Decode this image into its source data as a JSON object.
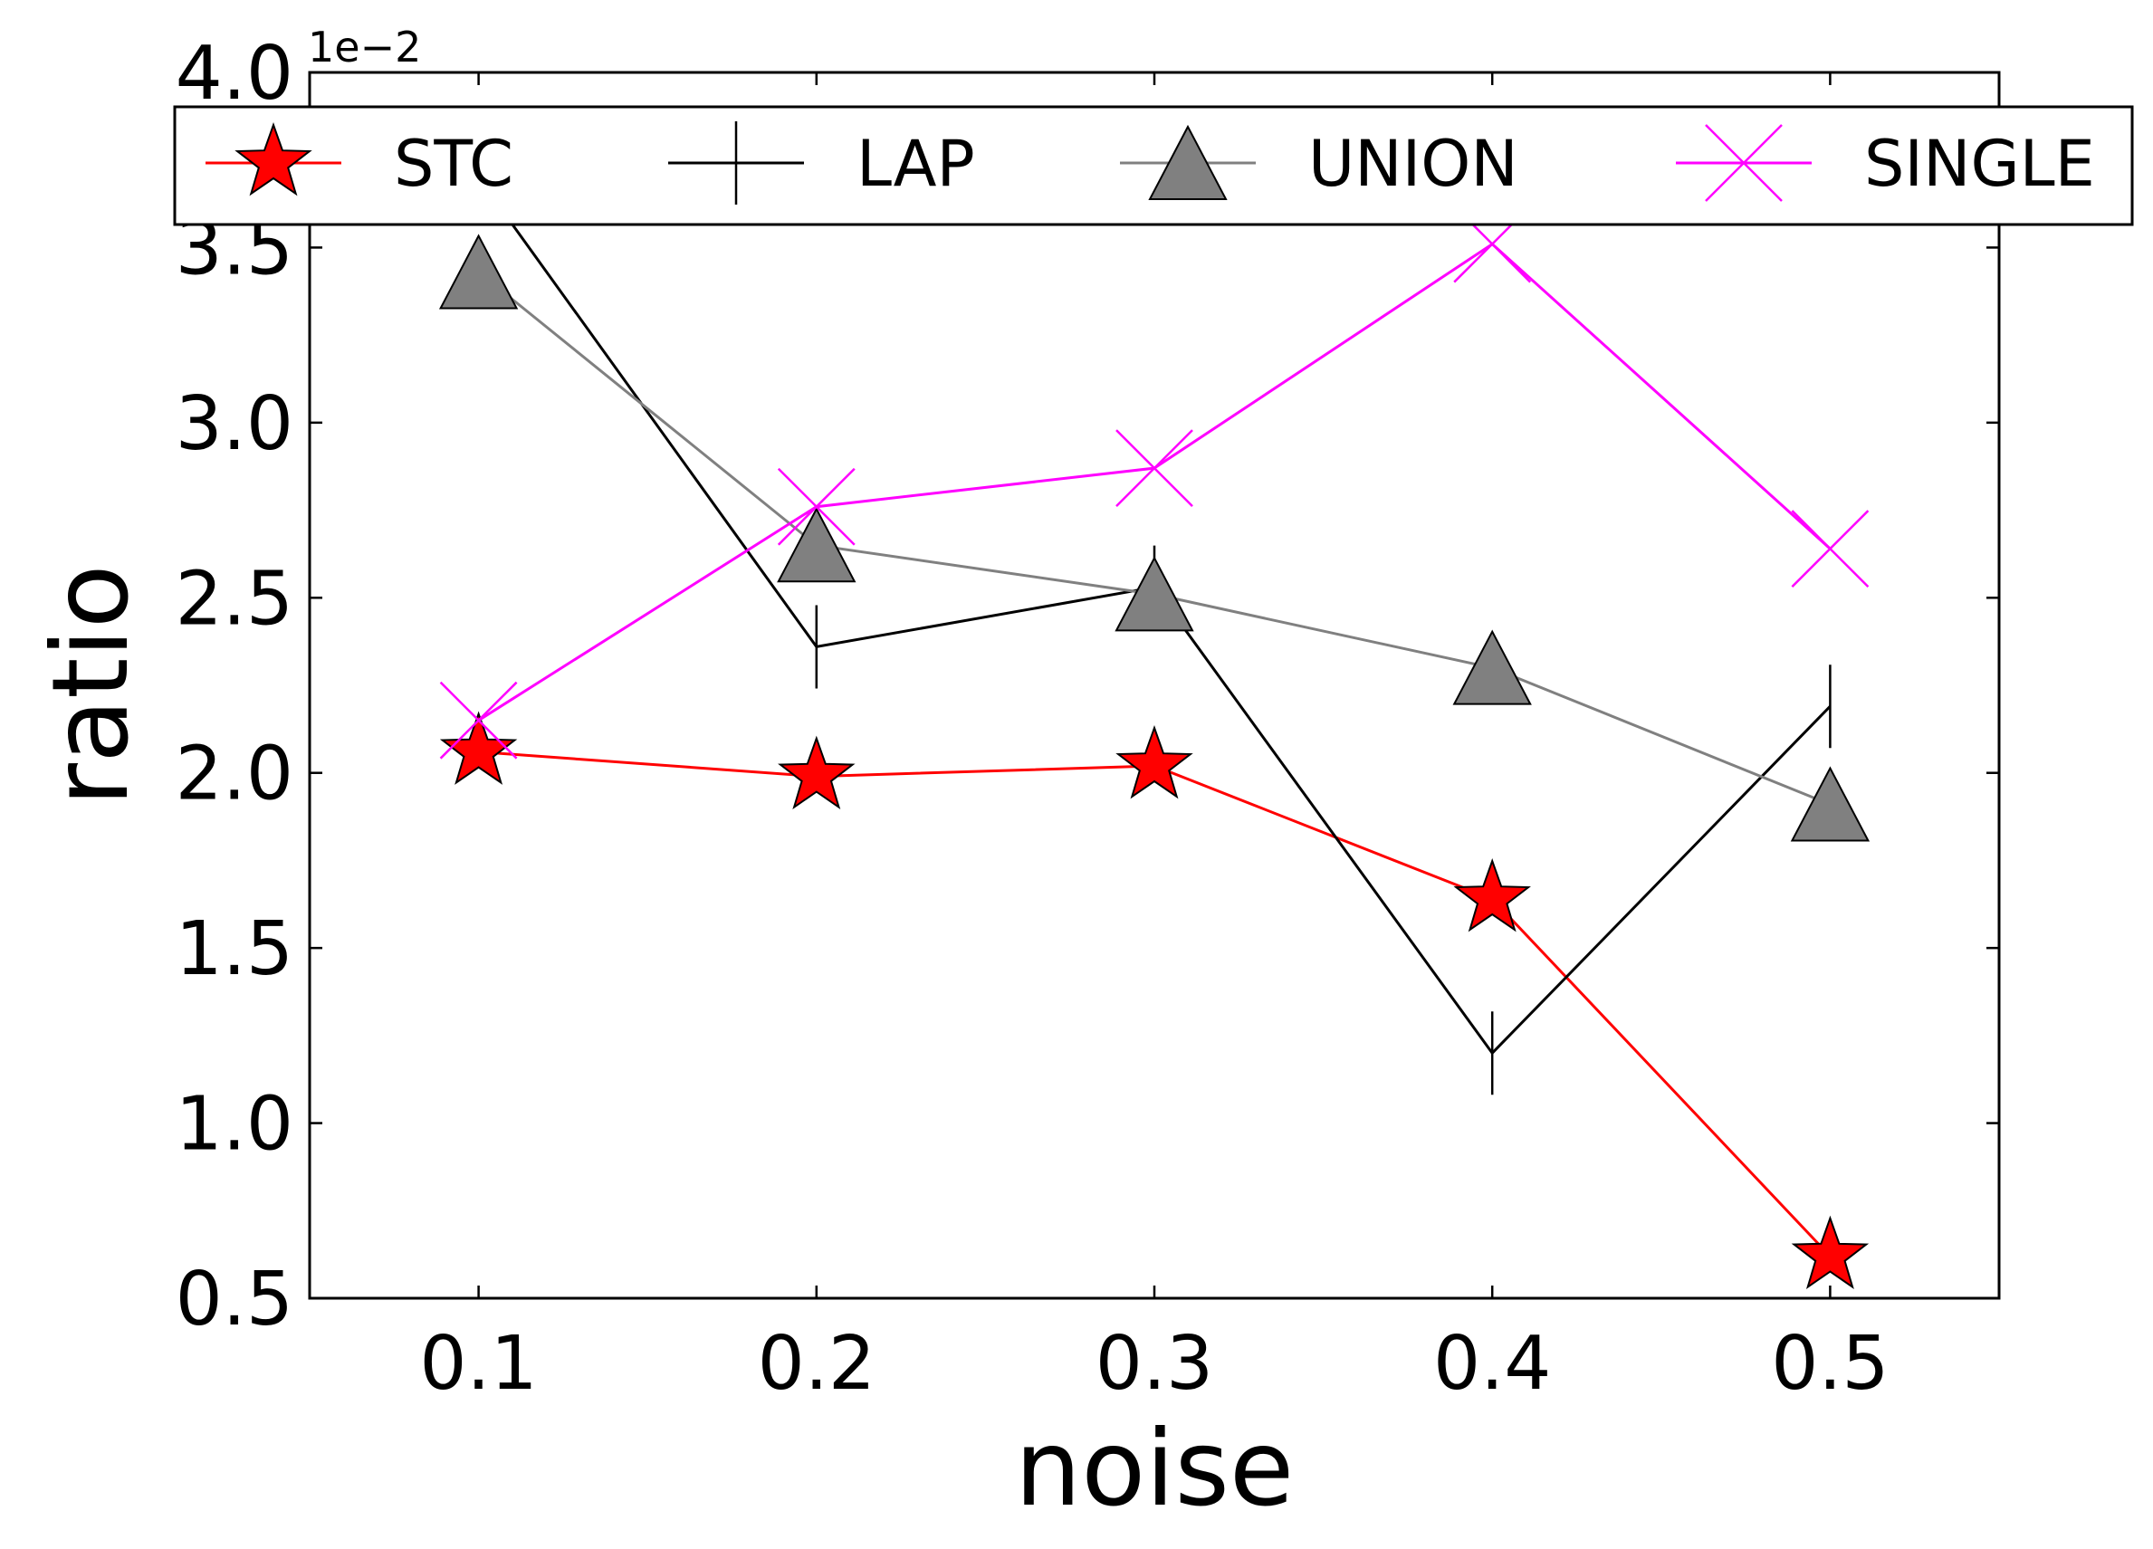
{
  "chart_data": {
    "type": "line",
    "xlabel": "noise",
    "ylabel": "ratio",
    "y_offset_label": "1e−2",
    "x": [
      0.1,
      0.2,
      0.3,
      0.4,
      0.5
    ],
    "x_tick_labels": [
      "0.1",
      "0.2",
      "0.3",
      "0.4",
      "0.5"
    ],
    "y_tick_labels": [
      "0.5",
      "1.0",
      "1.5",
      "2.0",
      "2.5",
      "3.0",
      "3.5",
      "4.0"
    ],
    "xlim": [
      0.05,
      0.55
    ],
    "ylim": [
      0.5,
      4.0
    ],
    "grid": false,
    "legend_position": "top",
    "series": [
      {
        "name": "STC",
        "color": "#ff0000",
        "marker": "star",
        "marker_fill": "#ff0000",
        "values": [
          2.06,
          1.99,
          2.02,
          1.64,
          0.62
        ]
      },
      {
        "name": "LAP",
        "color": "#000000",
        "marker": "vline",
        "marker_fill": "#000000",
        "values": [
          3.7,
          2.36,
          2.53,
          1.2,
          2.19
        ]
      },
      {
        "name": "UNION",
        "color": "#808080",
        "marker": "triangle",
        "marker_fill": "#808080",
        "values": [
          3.43,
          2.65,
          2.51,
          2.3,
          1.91
        ]
      },
      {
        "name": "SINGLE",
        "color": "#ff00ff",
        "marker": "x",
        "marker_fill": "#ff00ff",
        "values": [
          2.15,
          2.76,
          2.87,
          3.51,
          2.64
        ]
      }
    ]
  }
}
